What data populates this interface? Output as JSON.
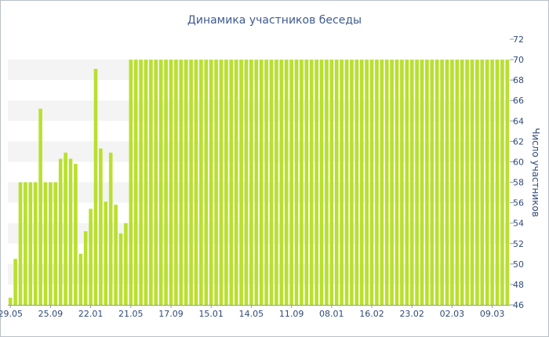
{
  "chart_data": {
    "type": "bar",
    "title": "Динамика участников беседы",
    "ylabel": "Число участников",
    "xlabel": "",
    "ylim": [
      46,
      72
    ],
    "y_ticks": [
      46,
      48,
      50,
      52,
      54,
      56,
      58,
      60,
      62,
      64,
      66,
      68,
      70,
      72
    ],
    "y_axis_position": "right",
    "x_tick_labels": [
      "29.05",
      "25.09",
      "22.01",
      "21.05",
      "17.09",
      "15.01",
      "14.05",
      "11.09",
      "08.01",
      "16.02",
      "23.02",
      "02.03",
      "09.03"
    ],
    "x_tick_bar_index": [
      0,
      8,
      16,
      24,
      32,
      40,
      48,
      56,
      64,
      72,
      80,
      88,
      96
    ],
    "bar_color": "#b9e02d",
    "band_color": "#f4f4f4",
    "grid": "alternating horizontal bands",
    "legend": "none",
    "values": [
      46.7,
      50.5,
      58,
      58,
      58,
      58,
      65.2,
      58,
      58,
      58,
      60.3,
      60.9,
      60.3,
      59.8,
      51,
      53.2,
      55.4,
      69.1,
      61.3,
      56.1,
      60.9,
      55.8,
      53,
      54,
      70,
      70,
      70,
      70,
      70,
      70,
      70,
      70,
      70,
      70,
      70,
      70,
      70,
      70,
      70,
      70,
      70,
      70,
      70,
      70,
      70,
      70,
      70,
      70,
      70,
      70,
      70,
      70,
      70,
      70,
      70,
      70,
      70,
      70,
      70,
      70,
      70,
      70,
      70,
      70,
      70,
      70,
      70,
      70,
      70,
      70,
      70,
      70,
      70,
      70,
      70,
      70,
      70,
      70,
      70,
      70,
      70,
      70,
      70,
      70,
      70,
      70,
      70,
      70,
      70,
      70,
      70,
      70,
      70,
      70,
      70,
      70,
      70,
      70,
      70,
      70
    ]
  }
}
